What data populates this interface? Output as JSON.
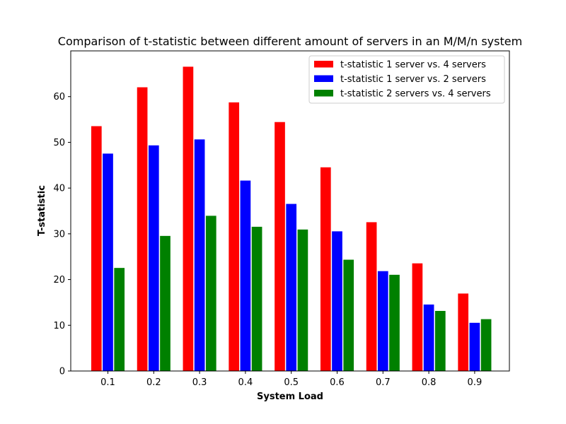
{
  "chart_data": {
    "type": "bar",
    "title": "Comparison of t-statistic between different amount of servers in an M/M/n system",
    "xlabel": "System Load",
    "ylabel": "T-statistic",
    "categories": [
      "0.1",
      "0.2",
      "0.3",
      "0.4",
      "0.5",
      "0.6",
      "0.7",
      "0.8",
      "0.9"
    ],
    "series": [
      {
        "name": "t-statistic 1 server vs. 4 servers",
        "color": "#ff0000",
        "values": [
          53.6,
          62.1,
          66.6,
          58.8,
          54.5,
          44.6,
          32.6,
          23.6,
          17.0
        ]
      },
      {
        "name": "t-statistic 1 server vs. 2 servers",
        "color": "#0000ff",
        "values": [
          47.6,
          49.4,
          50.7,
          41.7,
          36.6,
          30.6,
          21.9,
          14.6,
          10.6
        ]
      },
      {
        "name": "t-statistic 2 servers vs. 4 servers",
        "color": "#008000",
        "values": [
          22.6,
          29.6,
          34.0,
          31.6,
          31.0,
          24.4,
          21.1,
          13.2,
          11.4
        ]
      }
    ],
    "yticks": [
      0,
      10,
      20,
      30,
      40,
      50,
      60
    ],
    "ylim": [
      0,
      70
    ],
    "grid": false,
    "legend_position": "top-right"
  }
}
